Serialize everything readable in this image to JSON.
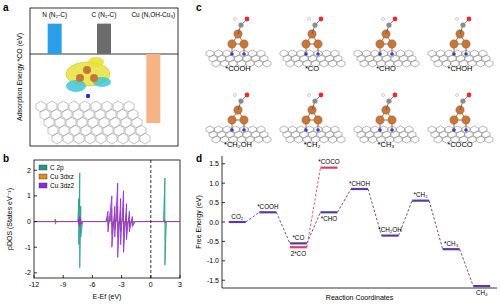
{
  "chart_data": [
    {
      "panel_label": "a",
      "type": "bar",
      "y_label": "Adsorption Energy *CO (eV)",
      "categories": [
        "N (N₂-C)",
        "C (N₂-C)",
        "Cu (N,OH-Cu₃)"
      ],
      "values": [
        0.33,
        0.33,
        -0.75
      ],
      "colors": [
        "#2a9fe8",
        "#6b6b6b",
        "#f6b486"
      ],
      "ylim": [
        -1.0,
        0.5
      ],
      "yticks": [
        0
      ],
      "tick_labels": "x"
    },
    {
      "panel_label": "b",
      "type": "line",
      "x_label": "E-Ef (eV)",
      "y_label": "pDOS (States eV⁻¹)",
      "x": [
        -12,
        -9.9,
        -9.8,
        -9.8,
        -9.7,
        -7.5,
        -7.4,
        -7.4,
        -7.3,
        -7.3,
        -7.2,
        -7.2,
        -7.0,
        -4.6,
        -4.4,
        -4.4,
        -4.0,
        -4.0,
        -3.7,
        -3.7,
        -3.4,
        -3.4,
        -3.1,
        -3.1,
        -2.8,
        -2.8,
        -2.5,
        -2.5,
        -2.2,
        -2.2,
        -1.9,
        -1.9,
        -1.6,
        1.3,
        1.45,
        1.45,
        1.6,
        3
      ],
      "series": [
        {
          "name": "C 2p",
          "color": "#1f9a8c",
          "values": [
            0,
            0,
            0.1,
            -0.1,
            0,
            0,
            0.9,
            -0.9,
            1.9,
            -1.8,
            0.6,
            -0.6,
            0,
            0,
            0.1,
            -0.1,
            0.2,
            -0.2,
            0.1,
            -0.1,
            0.2,
            -0.2,
            0.1,
            -0.1,
            0.1,
            -0.1,
            0.1,
            -0.1,
            0.05,
            -0.05,
            0,
            0,
            0,
            0,
            1.7,
            -1.7,
            0,
            0
          ]
        },
        {
          "name": "Cu 3dxz",
          "color": "#e38b1d",
          "values": [
            0,
            0,
            0.05,
            -0.05,
            0,
            0,
            0.1,
            -0.1,
            0.2,
            -0.2,
            0.1,
            -0.1,
            0,
            0,
            0.2,
            -0.2,
            0.5,
            -0.5,
            0.3,
            -0.3,
            0.6,
            -0.6,
            0.4,
            -0.4,
            0.5,
            -0.5,
            0.3,
            -0.3,
            0.2,
            -0.2,
            0.1,
            -0.1,
            0,
            0,
            0.05,
            -0.05,
            0,
            0
          ]
        },
        {
          "name": "Cu 3dz2",
          "color": "#8a2be2",
          "values": [
            0,
            0,
            0.02,
            -0.02,
            0,
            0,
            0.1,
            -0.1,
            0.2,
            -0.2,
            0.1,
            -0.1,
            0,
            0,
            0.4,
            -0.4,
            1.0,
            -1.0,
            0.6,
            -0.6,
            1.5,
            -1.4,
            0.9,
            -0.9,
            1.2,
            -1.2,
            0.7,
            -0.7,
            0.4,
            -0.4,
            0.2,
            -0.2,
            0,
            0,
            0.05,
            -0.05,
            0,
            0
          ]
        }
      ],
      "xlim": [
        -12,
        3
      ],
      "ylim": [
        -2.2,
        2.4
      ],
      "xticks": [
        -12,
        -9,
        -6,
        -3,
        0,
        3
      ],
      "yticks": [
        -2,
        -1,
        0,
        1,
        2
      ],
      "legend": "upper left",
      "vline": 0
    },
    {
      "panel_label": "d",
      "type": "level",
      "x_label": "Reaction Coordinates",
      "y_label": "Free Energy (eV)",
      "categories": [
        null,
        null,
        null,
        null,
        null,
        null,
        null,
        null,
        null
      ],
      "series": [
        {
          "color": "#5b3aa0",
          "line_style": "dashed",
          "values": [
            0,
            0.25,
            -0.55,
            0.25,
            0.85,
            -0.35,
            0.55,
            -0.7,
            -1.65
          ],
          "labels": [
            "CO₂",
            "*COOH",
            "*CO",
            "*CHO",
            "*CHOH",
            "*CH₂OH",
            "*CH₂",
            "*CH₃",
            "CH₄"
          ]
        },
        {
          "color": "#e23b6b",
          "line_style": "dashed",
          "values": [
            null,
            null,
            -0.65,
            1.4,
            null,
            null,
            null,
            null,
            null
          ],
          "labels": [
            null,
            null,
            "2*CO",
            "*COCO",
            null,
            null,
            null,
            null,
            null
          ]
        }
      ],
      "ylim": [
        -1.7,
        1.7
      ],
      "yticks": [
        {
          "value": -1.5,
          "label": "-1.5"
        },
        {
          "value": -1,
          "label": "-1.0"
        },
        -0.5,
        {
          "value": 0,
          "label": "0.0"
        },
        0.5,
        {
          "value": 1,
          "label": "1.0"
        },
        1.5
      ],
      "tick_labels": "y"
    }
  ],
  "structures": {
    "panel_label": "c",
    "labels": [
      "*COOH",
      "*CO",
      "*CHO",
      "*CHOH",
      "*CH₂OH",
      "*CH₂",
      "*CH₃",
      "*COCO"
    ]
  }
}
